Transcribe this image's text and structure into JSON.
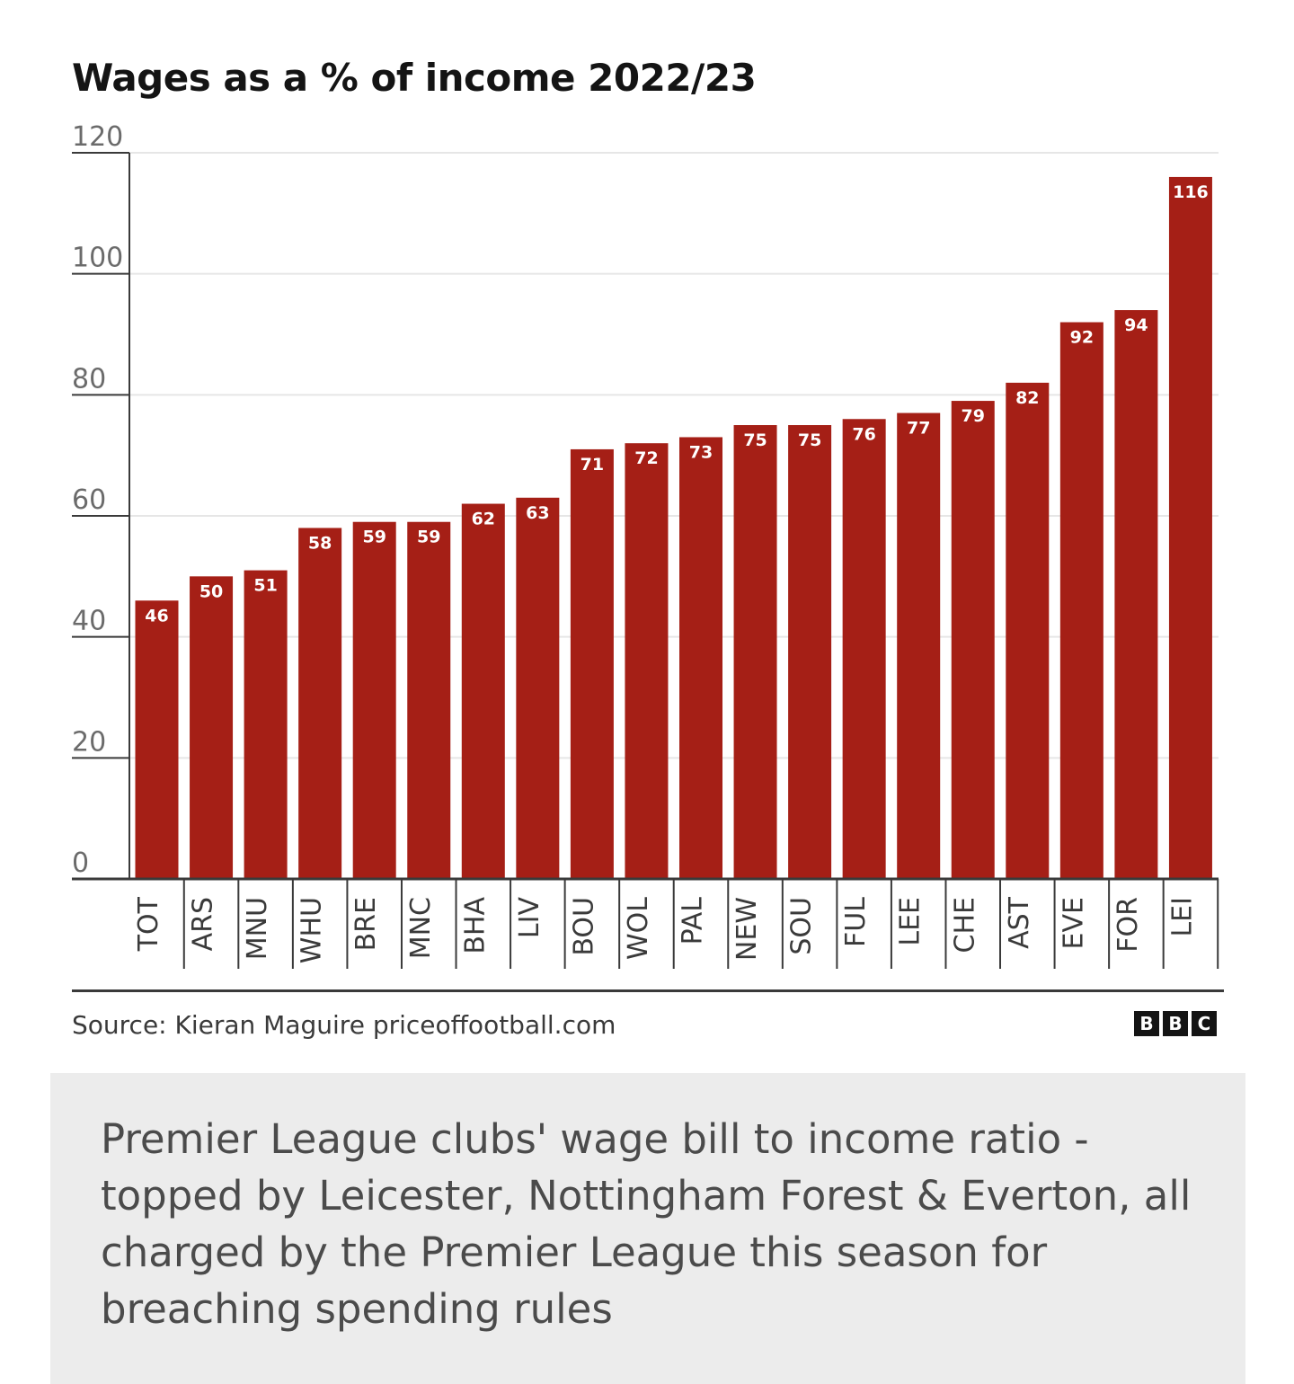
{
  "chart_data": {
    "type": "bar",
    "title": "Wages as a % of income 2022/23",
    "categories": [
      "TOT",
      "ARS",
      "MNU",
      "WHU",
      "BRE",
      "MNC",
      "BHA",
      "LIV",
      "BOU",
      "WOL",
      "PAL",
      "NEW",
      "SOU",
      "FUL",
      "LEE",
      "CHE",
      "AST",
      "EVE",
      "FOR",
      "LEI"
    ],
    "values": [
      46,
      50,
      51,
      58,
      59,
      59,
      62,
      63,
      71,
      72,
      73,
      75,
      75,
      76,
      77,
      79,
      82,
      92,
      94,
      116
    ],
    "xlabel": "",
    "ylabel": "",
    "ylim": [
      0,
      120
    ],
    "yticks": [
      0,
      20,
      40,
      60,
      80,
      100,
      120
    ],
    "grid": true,
    "legend": "none",
    "bar_color": "#a51f16",
    "data_labels": true
  },
  "source": "Source: Kieran Maguire priceoffootball.com",
  "logo": {
    "letters": [
      "B",
      "B",
      "C"
    ]
  },
  "caption": "Premier League clubs' wage bill to income ratio - topped by Leicester, Nottingham Forest & Everton, all charged by the Premier League this season for breaching spending rules"
}
